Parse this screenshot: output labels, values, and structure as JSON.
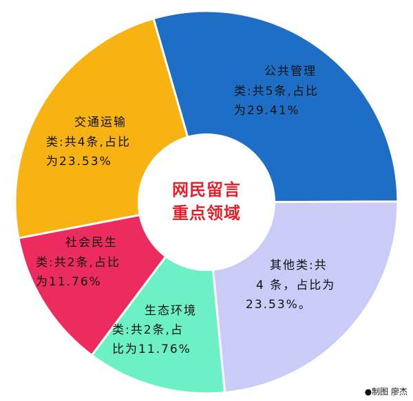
{
  "chart_data": {
    "type": "pie",
    "categories": [
      "公共管理",
      "其他类",
      "生态环境",
      "社会民生",
      "交通运输"
    ],
    "values": [
      29.41,
      23.53,
      11.76,
      11.76,
      23.53
    ],
    "colors": [
      "#1e6ec5",
      "#cacbf7",
      "#6ef0c6",
      "#ec2c5e",
      "#f7b314"
    ],
    "label_lines": [
      [
        "公共管理",
        "类:共5条,占比",
        "为29.41%"
      ],
      [
        "其他类:共",
        "4 条，占比为",
        "23.53%。"
      ],
      [
        "生态环境",
        "类:共2条,占",
        "比为11.76%"
      ],
      [
        "社会民生",
        "类:共2条,占比",
        "为11.76%"
      ],
      [
        "交通运输",
        "类:共4条,占比",
        "为23.53%"
      ]
    ],
    "center_text": [
      "网民留言",
      "重点领域"
    ],
    "credit": "●制图 廖杰"
  }
}
